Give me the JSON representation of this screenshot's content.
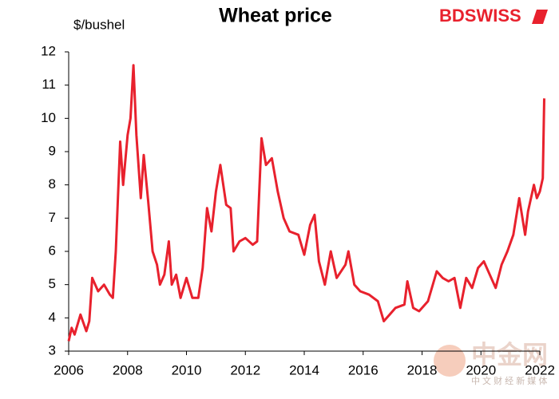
{
  "chart_data": {
    "type": "line",
    "title": "Wheat price",
    "y_label": "$/bushel",
    "logo": "BDSWISS",
    "watermark": "中金网",
    "watermark_sub": "中 文 财 经 新 媒 体",
    "xlim": [
      2006,
      2022
    ],
    "xticks": [
      2006,
      2008,
      2010,
      2012,
      2014,
      2016,
      2018,
      2020,
      2022
    ],
    "ylim": [
      3,
      12
    ],
    "yticks": [
      3,
      4,
      5,
      6,
      7,
      8,
      9,
      10,
      11,
      12
    ],
    "grid": false,
    "series": [
      {
        "name": "Wheat price",
        "color": "#e8212d",
        "x": [
          2006.0,
          2006.1,
          2006.2,
          2006.4,
          2006.6,
          2006.7,
          2006.8,
          2007.0,
          2007.2,
          2007.4,
          2007.5,
          2007.6,
          2007.75,
          2007.85,
          2008.0,
          2008.1,
          2008.2,
          2008.3,
          2008.45,
          2008.55,
          2008.7,
          2008.85,
          2009.0,
          2009.1,
          2009.25,
          2009.4,
          2009.5,
          2009.65,
          2009.8,
          2010.0,
          2010.2,
          2010.4,
          2010.55,
          2010.7,
          2010.85,
          2011.0,
          2011.15,
          2011.35,
          2011.5,
          2011.6,
          2011.8,
          2012.0,
          2012.25,
          2012.4,
          2012.55,
          2012.7,
          2012.9,
          2013.1,
          2013.3,
          2013.5,
          2013.8,
          2014.0,
          2014.2,
          2014.35,
          2014.5,
          2014.7,
          2014.9,
          2015.1,
          2015.4,
          2015.5,
          2015.7,
          2015.9,
          2016.2,
          2016.5,
          2016.7,
          2016.9,
          2017.1,
          2017.4,
          2017.5,
          2017.7,
          2017.9,
          2018.2,
          2018.5,
          2018.7,
          2018.9,
          2019.1,
          2019.3,
          2019.5,
          2019.7,
          2019.9,
          2020.1,
          2020.3,
          2020.5,
          2020.7,
          2020.9,
          2021.1,
          2021.3,
          2021.5,
          2021.6,
          2021.8,
          2021.9,
          2022.0,
          2022.1,
          2022.15
        ],
        "values": [
          3.3,
          3.7,
          3.5,
          4.1,
          3.6,
          3.9,
          5.2,
          4.8,
          5.0,
          4.7,
          4.6,
          6.0,
          9.3,
          8.0,
          9.5,
          10.0,
          11.6,
          9.5,
          7.6,
          8.9,
          7.5,
          6.0,
          5.6,
          5.0,
          5.3,
          6.3,
          5.0,
          5.3,
          4.6,
          5.2,
          4.6,
          4.6,
          5.5,
          7.3,
          6.6,
          7.8,
          8.6,
          7.4,
          7.3,
          6.0,
          6.3,
          6.4,
          6.2,
          6.3,
          9.4,
          8.6,
          8.8,
          7.8,
          7.0,
          6.6,
          6.5,
          5.9,
          6.8,
          7.1,
          5.7,
          5.0,
          6.0,
          5.2,
          5.6,
          6.0,
          5.0,
          4.8,
          4.7,
          4.5,
          3.9,
          4.1,
          4.3,
          4.4,
          5.1,
          4.3,
          4.2,
          4.5,
          5.4,
          5.2,
          5.1,
          5.2,
          4.3,
          5.2,
          4.9,
          5.5,
          5.7,
          5.3,
          4.9,
          5.6,
          6.0,
          6.5,
          7.6,
          6.5,
          7.2,
          8.0,
          7.6,
          7.8,
          8.2,
          10.6
        ]
      }
    ]
  }
}
